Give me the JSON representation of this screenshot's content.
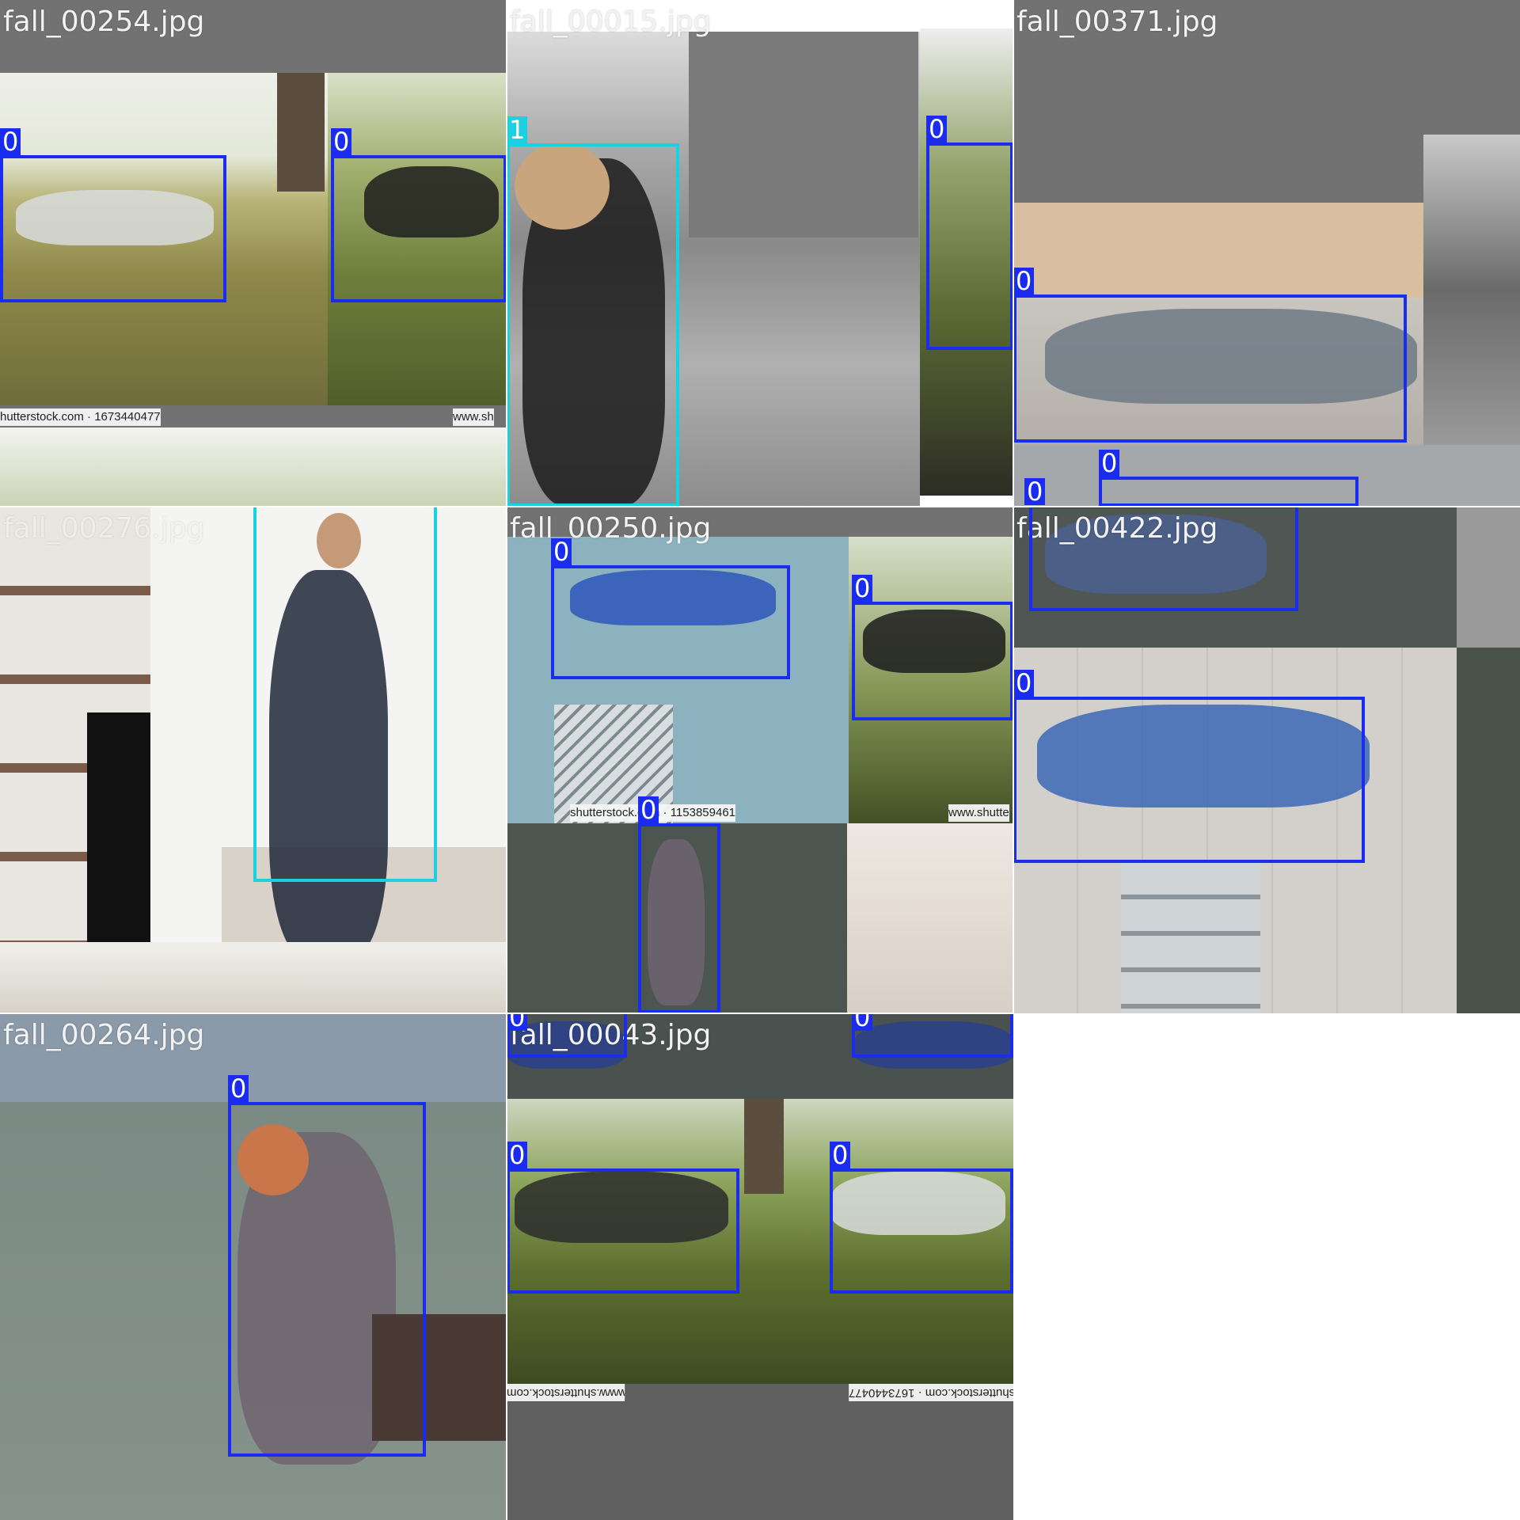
{
  "tiles": [
    {
      "filename": "fall_00254.jpg"
    },
    {
      "filename": "fall_00015.jpg"
    },
    {
      "filename": "fall_00371.jpg"
    },
    {
      "filename": "fall_00276.jpg"
    },
    {
      "filename": "fall_00250.jpg"
    },
    {
      "filename": "fall_00422.jpg"
    },
    {
      "filename": "fall_00264.jpg"
    },
    {
      "filename": "fall_00043.jpg"
    }
  ],
  "class_labels": {
    "fall": "0",
    "person": "1"
  },
  "watermarks": {
    "wm1": "hutterstock.com · 1673440477",
    "wm2": "www.sh",
    "wm3": "shutterstock.com · 1153859461",
    "wm4": "www.shutte",
    "wm5": "www.shutterstock.com",
    "wm6": "shutterstock.com · 1673440477"
  },
  "colors": {
    "class0": "#1a2cf0",
    "class1": "#19d1e0",
    "pad": "#727272"
  }
}
